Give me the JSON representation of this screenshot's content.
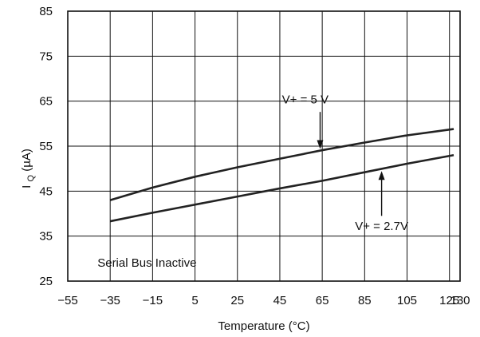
{
  "chart_data": {
    "type": "line",
    "xlabel": "Temperature (°C)",
    "ylabel": {
      "main": "I",
      "subscript": "Q",
      "suffix": " (µA)"
    },
    "xlim": [
      -55,
      130
    ],
    "ylim": [
      25,
      85
    ],
    "grid": true,
    "x_ticks": [
      -55,
      -35,
      -15,
      5,
      25,
      45,
      65,
      85,
      105,
      125,
      130
    ],
    "x_tick_labels": [
      "−55",
      "−35",
      "−15",
      "5",
      "25",
      "45",
      "65",
      "85",
      "105",
      "125",
      "130"
    ],
    "y_ticks": [
      25,
      35,
      45,
      55,
      65,
      75,
      85
    ],
    "y_tick_labels": [
      "25",
      "35",
      "45",
      "55",
      "65",
      "75",
      "85"
    ],
    "series": [
      {
        "name": "V+ = 5 V",
        "x": [
          -35,
          -15,
          5,
          25,
          45,
          65,
          85,
          105,
          127
        ],
        "y": [
          43.0,
          45.8,
          48.2,
          50.3,
          52.2,
          54.1,
          55.8,
          57.4,
          58.8
        ]
      },
      {
        "name": "V+ = 2.7V",
        "x": [
          -35,
          -15,
          5,
          25,
          45,
          65,
          85,
          105,
          127
        ],
        "y": [
          38.3,
          40.2,
          42.0,
          43.8,
          45.6,
          47.3,
          49.2,
          51.1,
          53.0
        ]
      }
    ],
    "annotations": [
      {
        "text": "V+ = 5 V",
        "label_at": [
          57,
          64.5
        ],
        "arrow_from": [
          64,
          62.6
        ],
        "arrow_to": [
          64,
          54.2
        ]
      },
      {
        "text": "V+ = 2.7V",
        "label_at": [
          93,
          36.4
        ],
        "arrow_from": [
          93,
          39.5
        ],
        "arrow_to": [
          93,
          49.8
        ]
      },
      {
        "text": "Serial Bus Inactive",
        "label_at": [
          -41,
          28.2
        ]
      }
    ]
  }
}
